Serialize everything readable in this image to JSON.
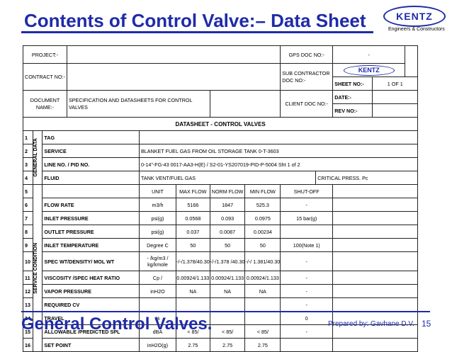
{
  "slide": {
    "title": "Contents of Control Valve:– Data Sheet",
    "footer_title": "General Control Valves.",
    "prepared_by": "Prepared by: Gavhane D.V.",
    "page_number": "15",
    "accent_color": "#1f2ba8"
  },
  "logo": {
    "brand": "KENTZ",
    "tagline": "Engineers & Constructors"
  },
  "header": {
    "project_label": "PROJECT:-",
    "gps_label": "GPS DOC NO:-",
    "gps_value": "-",
    "contract_label": "CONTRACT NO:-",
    "subcontractor_label": "SUB CONTRACTOR DOC NO:-",
    "sheet_label": "SHEET NO:-",
    "sheet_value": "1  OF 1",
    "document_label": "DOCUMENT NAME:-",
    "document_value": "SPECIFICATION AND DATASHEETS FOR CONTROL VALVES",
    "client_label": "CLIENT DOC NO:-",
    "date_label": "DATE:-",
    "rev_label": "REV NO:-"
  },
  "datasheet": {
    "heading": "DATASHEET  - CONTROL VALVES",
    "group_general": "GENERAL DATA",
    "group_service": "SERVICE CONDITION",
    "general_rows": [
      {
        "no": "1",
        "label": "TAG",
        "value": ""
      },
      {
        "no": "2",
        "label": "SERVICE",
        "value": "BLANKET FUEL GAS FROM OIL STORAGE TANK 0-T-3603"
      },
      {
        "no": "3",
        "label": "LINE NO. / PID NO.",
        "value": "0-14\"-FG-43   0017-AA3-H(E) / S2-01-YS207019-PID-P-5004   Sht  1 of  2"
      },
      {
        "no": "4",
        "label": "FLUID",
        "value": "TANK VENT/FUEL GAS",
        "extra": "CRITICAL PRESS.  Pc"
      }
    ],
    "col_header": {
      "no": "5",
      "unit": "UNIT",
      "max": "MAX FLOW",
      "norm": "NORM FLOW",
      "min": "MIN FLOW",
      "shutoff": "SHUT-OFF"
    },
    "service_rows": [
      {
        "no": "6",
        "label": "FLOW RATE",
        "unit": "m3/h",
        "max": "5166",
        "norm": "1847",
        "min": "525.3",
        "shutoff": "-"
      },
      {
        "no": "7",
        "label": "INLET PRESSURE",
        "unit": "psi(g)",
        "max": "0.0568",
        "norm": "0.093",
        "min": "0.0975",
        "shutoff": "15 bar(g)"
      },
      {
        "no": "8",
        "label": "OUTLET PRESSURE",
        "unit": "psi(g)",
        "max": "0.037",
        "norm": "0.0087",
        "min": "0.00234",
        "shutoff": ""
      },
      {
        "no": "9",
        "label": "INLET TEMPERATURE",
        "unit": "Degree C",
        "max": "50",
        "norm": "50",
        "min": "50",
        "shutoff": "100(Note 1)"
      },
      {
        "no": "10",
        "label": "SPEC WT/DENSITY/ MOL WT",
        "unit": "- /kg/m3 / kg/kmole",
        "max": "-/-/1.378/40.30",
        "norm": "-/-/1.378 /40.30",
        "min": "-/-/ 1.381/40.30",
        "shutoff": "-"
      },
      {
        "no": "11",
        "label": "VISCOSITY /SPEC HEAT RATIO",
        "unit": "Cp /",
        "max": "0.00924/1.133",
        "norm": "0.00924/1.133",
        "min": "0.00924/1.133",
        "shutoff": "-"
      },
      {
        "no": "12",
        "label": "VAPOR PRESSURE",
        "unit": "inH2O",
        "max": "NA",
        "norm": "NA",
        "min": "NA",
        "shutoff": "-"
      },
      {
        "no": "13",
        "label": "REQUIRED CV",
        "unit": "",
        "max": "",
        "norm": "",
        "min": "",
        "shutoff": "-"
      },
      {
        "no": "14",
        "label": "TRAVEL",
        "unit": "%",
        "max": "",
        "norm": "",
        "min": "",
        "shutoff": "0"
      },
      {
        "no": "15",
        "label": "ALLOWABLE /PREDICTED  SPL",
        "unit": "dBA",
        "max": "< 85/",
        "norm": "< 85/",
        "min": "< 85/",
        "shutoff": "-"
      },
      {
        "no": "16",
        "label": "SET POINT",
        "unit": "inH2O(g)",
        "max": "2.75",
        "norm": "2.75",
        "min": "2.75",
        "shutoff": ""
      }
    ]
  }
}
